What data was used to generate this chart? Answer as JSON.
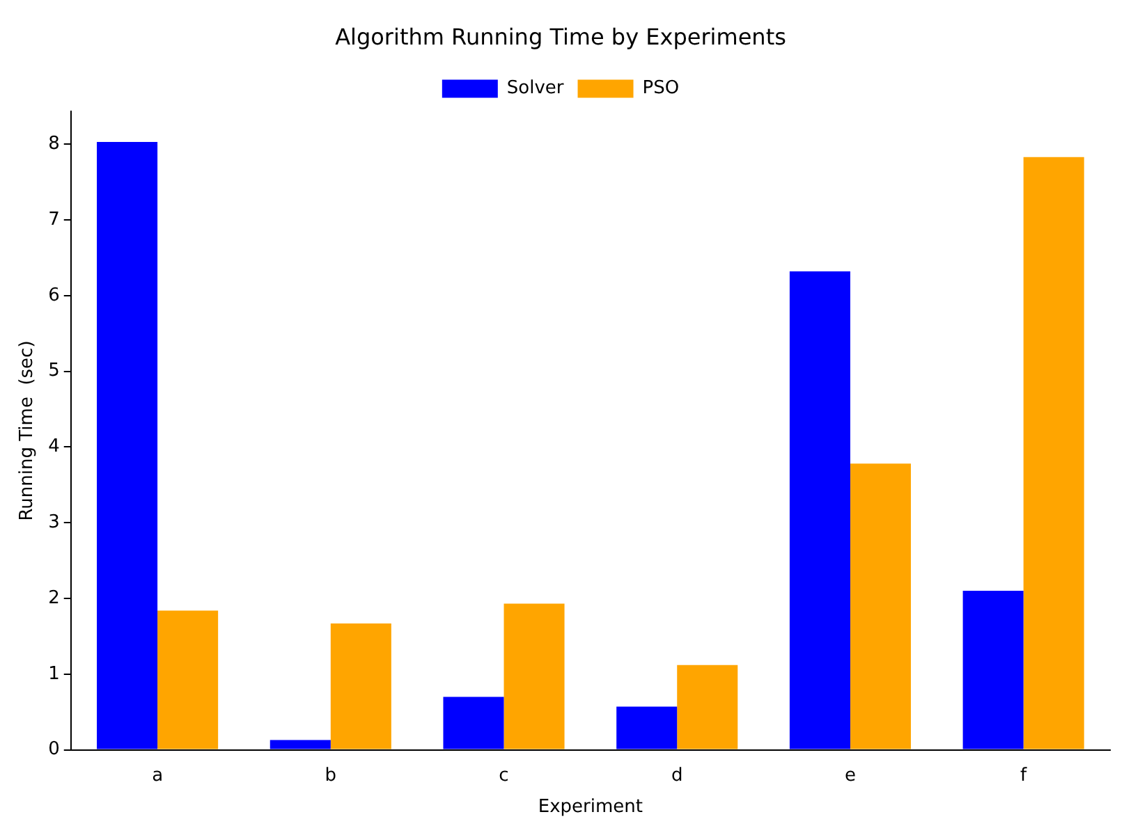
{
  "chart_data": {
    "type": "bar",
    "title": "Algorithm Running Time by Experiments",
    "xlabel": "Experiment",
    "ylabel": "Running Time  (sec)",
    "categories": [
      "a",
      "b",
      "c",
      "d",
      "e",
      "f"
    ],
    "series": [
      {
        "name": "Solver",
        "color": "#0000ff",
        "values": [
          8.03,
          0.13,
          0.7,
          0.57,
          6.32,
          2.1
        ]
      },
      {
        "name": "PSO",
        "color": "#ffa500",
        "values": [
          1.84,
          1.67,
          1.93,
          1.12,
          3.78,
          7.83
        ]
      }
    ],
    "ylim": [
      0,
      8.43
    ],
    "yticks": [
      0,
      1,
      2,
      3,
      4,
      5,
      6,
      7,
      8
    ],
    "legend": "top"
  }
}
